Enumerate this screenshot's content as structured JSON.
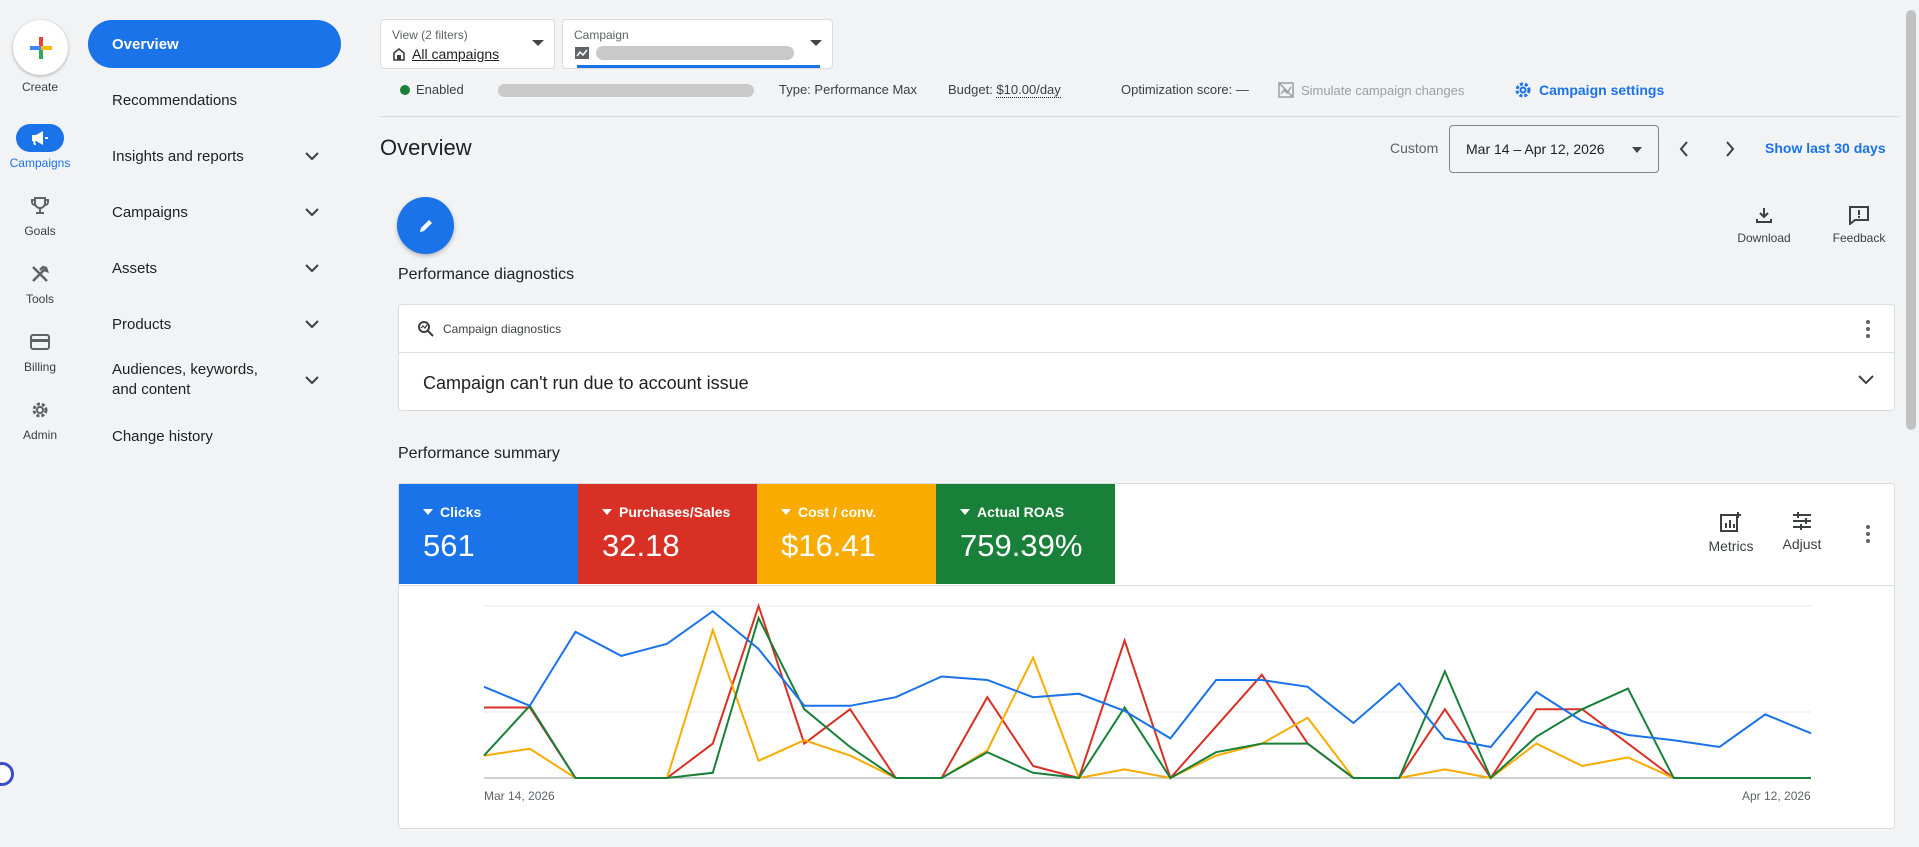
{
  "rail": {
    "create_label": "Create",
    "items": [
      {
        "label": "Campaigns",
        "icon": "megaphone-icon"
      },
      {
        "label": "Goals",
        "icon": "trophy-icon"
      },
      {
        "label": "Tools",
        "icon": "tools-icon"
      },
      {
        "label": "Billing",
        "icon": "credit-card-icon"
      },
      {
        "label": "Admin",
        "icon": "gear-icon"
      }
    ]
  },
  "nav": {
    "items": [
      {
        "label": "Overview",
        "active": true
      },
      {
        "label": "Recommendations"
      },
      {
        "label": "Insights and reports"
      },
      {
        "label": "Campaigns"
      },
      {
        "label": "Assets"
      },
      {
        "label": "Products"
      },
      {
        "label": "Audiences, keywords, and content"
      },
      {
        "label": "Change history"
      }
    ]
  },
  "top": {
    "view_small": "View (2 filters)",
    "view_main": "All campaigns",
    "campaign_small": "Campaign"
  },
  "info": {
    "status": "Enabled",
    "type_label": "Type:",
    "type_value": "Performance Max",
    "budget_label": "Budget:",
    "budget_value": "$10.00/day",
    "opt_label": "Optimization score:",
    "opt_value": "—",
    "simulate": "Simulate campaign changes",
    "settings": "Campaign settings"
  },
  "page": {
    "title": "Overview",
    "custom": "Custom",
    "date_range": "Mar 14 – Apr 12, 2026",
    "show_last": "Show last 30 days",
    "download": "Download",
    "feedback": "Feedback"
  },
  "diagnostics": {
    "title": "Performance diagnostics",
    "head": "Campaign diagnostics",
    "message": "Campaign can't run due to account issue"
  },
  "summary": {
    "title": "Performance summary",
    "metrics_btn": "Metrics",
    "adjust_btn": "Adjust",
    "tiles": [
      {
        "label": "Clicks",
        "value": "561",
        "color": "#1a73e8"
      },
      {
        "label": "Purchases/Sales",
        "value": "32.18",
        "color": "#d93025"
      },
      {
        "label": "Cost / conv.",
        "value": "$16.41",
        "color": "#f9ab00"
      },
      {
        "label": "Actual ROAS",
        "value": "759.39%",
        "color": "#188038"
      }
    ]
  },
  "chart_data": {
    "type": "line",
    "x_start_label": "Mar 14, 2026",
    "x_end_label": "Apr 12, 2026",
    "ylim": [
      0,
      1
    ],
    "grid": true,
    "series": [
      {
        "name": "Clicks",
        "color": "#1a73e8",
        "values": [
          0.53,
          0.42,
          0.85,
          0.71,
          0.78,
          0.97,
          0.75,
          0.42,
          0.42,
          0.47,
          0.59,
          0.57,
          0.47,
          0.49,
          0.39,
          0.23,
          0.57,
          0.57,
          0.53,
          0.32,
          0.55,
          0.23,
          0.18,
          0.5,
          0.33,
          0.25,
          0.22,
          0.18,
          0.37,
          0.26
        ]
      },
      {
        "name": "Purchases/Sales",
        "color": "#d93025",
        "values": [
          0.41,
          0.41,
          0,
          0,
          0,
          0.2,
          1.0,
          0.2,
          0.4,
          0,
          0,
          0.47,
          0.07,
          0,
          0.8,
          0,
          0.3,
          0.6,
          0.2,
          0,
          0,
          0.4,
          0,
          0.4,
          0.4,
          0.2,
          0,
          0,
          0,
          0
        ]
      },
      {
        "name": "Cost / conv.",
        "color": "#f9ab00",
        "values": [
          0.13,
          0.17,
          0,
          0,
          0,
          0.86,
          0.1,
          0.22,
          0.13,
          0,
          0,
          0.16,
          0.7,
          0,
          0.05,
          0,
          0.13,
          0.2,
          0.35,
          0,
          0,
          0.05,
          0,
          0.2,
          0.07,
          0.12,
          0,
          0,
          0,
          0
        ]
      },
      {
        "name": "Actual ROAS",
        "color": "#188038",
        "values": [
          0.13,
          0.42,
          0,
          0,
          0,
          0.03,
          0.93,
          0.4,
          0.18,
          0,
          0,
          0.15,
          0.03,
          0,
          0.41,
          0,
          0.15,
          0.2,
          0.2,
          0,
          0,
          0.62,
          0,
          0.24,
          0.4,
          0.52,
          0,
          0,
          0,
          0
        ]
      }
    ]
  }
}
